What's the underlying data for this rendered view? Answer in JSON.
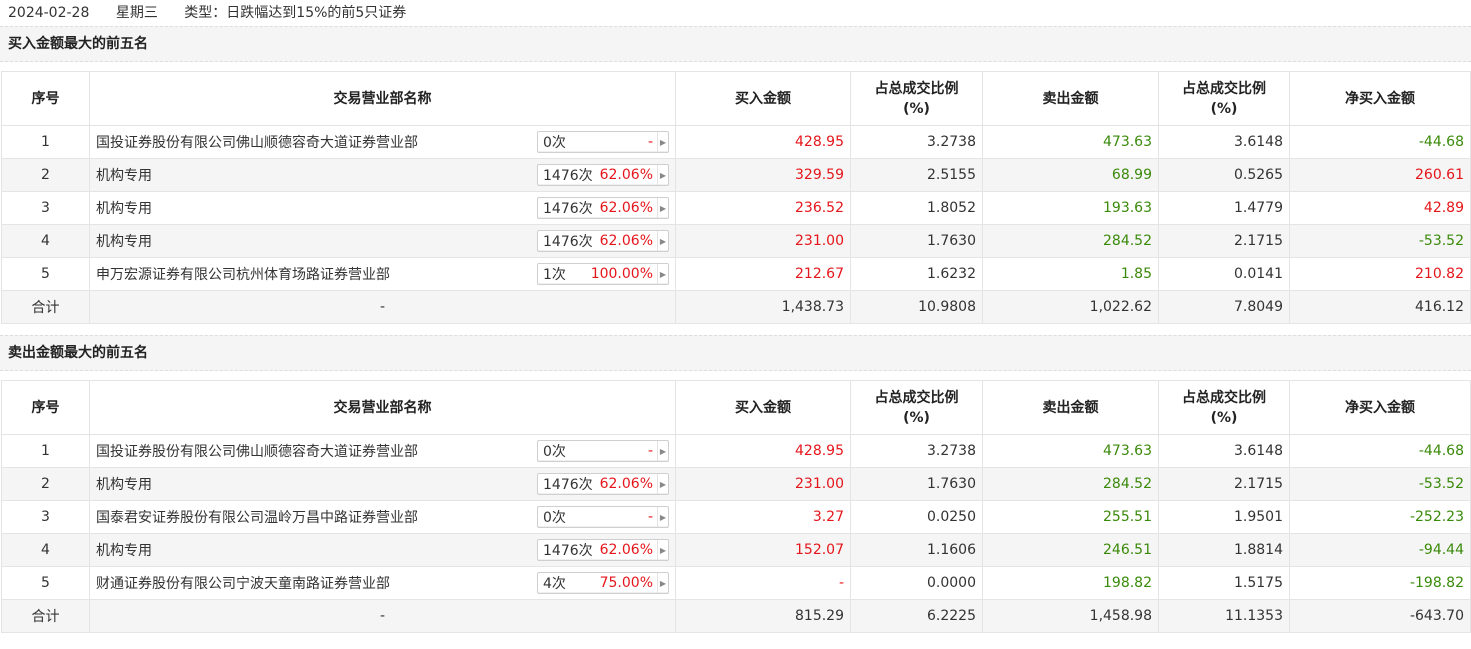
{
  "header": {
    "date": "2024-02-28",
    "weekday": "星期三",
    "type_label": "类型：日跌幅达到15%的前5只证券"
  },
  "columns": {
    "rank": "序号",
    "name": "交易营业部名称",
    "buy": "买入金额",
    "buy_ratio_l1": "占总成交比例",
    "buy_ratio_l2": "(%)",
    "sell": "卖出金额",
    "sell_ratio_l1": "占总成交比例",
    "sell_ratio_l2": "(%)",
    "net": "净买入金额"
  },
  "colors": {
    "red": "#e5161b",
    "green": "#3a8a0a"
  },
  "buy_top5": {
    "title": "买入金额最大的前五名",
    "rows": [
      {
        "rank": "1",
        "name": "国投证券股份有限公司佛山顺德容奇大道证券营业部",
        "times": "0次",
        "pct": "-",
        "buy": "428.95",
        "buy_ratio": "3.2738",
        "sell": "473.63",
        "sell_ratio": "3.6148",
        "net": "-44.68"
      },
      {
        "rank": "2",
        "name": "机构专用",
        "times": "1476次",
        "pct": "62.06%",
        "buy": "329.59",
        "buy_ratio": "2.5155",
        "sell": "68.99",
        "sell_ratio": "0.5265",
        "net": "260.61"
      },
      {
        "rank": "3",
        "name": "机构专用",
        "times": "1476次",
        "pct": "62.06%",
        "buy": "236.52",
        "buy_ratio": "1.8052",
        "sell": "193.63",
        "sell_ratio": "1.4779",
        "net": "42.89"
      },
      {
        "rank": "4",
        "name": "机构专用",
        "times": "1476次",
        "pct": "62.06%",
        "buy": "231.00",
        "buy_ratio": "1.7630",
        "sell": "284.52",
        "sell_ratio": "2.1715",
        "net": "-53.52"
      },
      {
        "rank": "5",
        "name": "申万宏源证券有限公司杭州体育场路证券营业部",
        "times": "1次",
        "pct": "100.00%",
        "buy": "212.67",
        "buy_ratio": "1.6232",
        "sell": "1.85",
        "sell_ratio": "0.0141",
        "net": "210.82"
      }
    ],
    "total": {
      "label": "合计",
      "name": "-",
      "buy": "1,438.73",
      "buy_ratio": "10.9808",
      "sell": "1,022.62",
      "sell_ratio": "7.8049",
      "net": "416.12"
    }
  },
  "sell_top5": {
    "title": "卖出金额最大的前五名",
    "rows": [
      {
        "rank": "1",
        "name": "国投证券股份有限公司佛山顺德容奇大道证券营业部",
        "times": "0次",
        "pct": "-",
        "buy": "428.95",
        "buy_ratio": "3.2738",
        "sell": "473.63",
        "sell_ratio": "3.6148",
        "net": "-44.68"
      },
      {
        "rank": "2",
        "name": "机构专用",
        "times": "1476次",
        "pct": "62.06%",
        "buy": "231.00",
        "buy_ratio": "1.7630",
        "sell": "284.52",
        "sell_ratio": "2.1715",
        "net": "-53.52"
      },
      {
        "rank": "3",
        "name": "国泰君安证券股份有限公司温岭万昌中路证券营业部",
        "times": "0次",
        "pct": "-",
        "buy": "3.27",
        "buy_ratio": "0.0250",
        "sell": "255.51",
        "sell_ratio": "1.9501",
        "net": "-252.23"
      },
      {
        "rank": "4",
        "name": "机构专用",
        "times": "1476次",
        "pct": "62.06%",
        "buy": "152.07",
        "buy_ratio": "1.1606",
        "sell": "246.51",
        "sell_ratio": "1.8814",
        "net": "-94.44"
      },
      {
        "rank": "5",
        "name": "财通证券股份有限公司宁波天童南路证券营业部",
        "times": "4次",
        "pct": "75.00%",
        "buy": "-",
        "buy_ratio": "0.0000",
        "sell": "198.82",
        "sell_ratio": "1.5175",
        "net": "-198.82"
      }
    ],
    "total": {
      "label": "合计",
      "name": "-",
      "buy": "815.29",
      "buy_ratio": "6.2225",
      "sell": "1,458.98",
      "sell_ratio": "11.1353",
      "net": "-643.70"
    }
  }
}
